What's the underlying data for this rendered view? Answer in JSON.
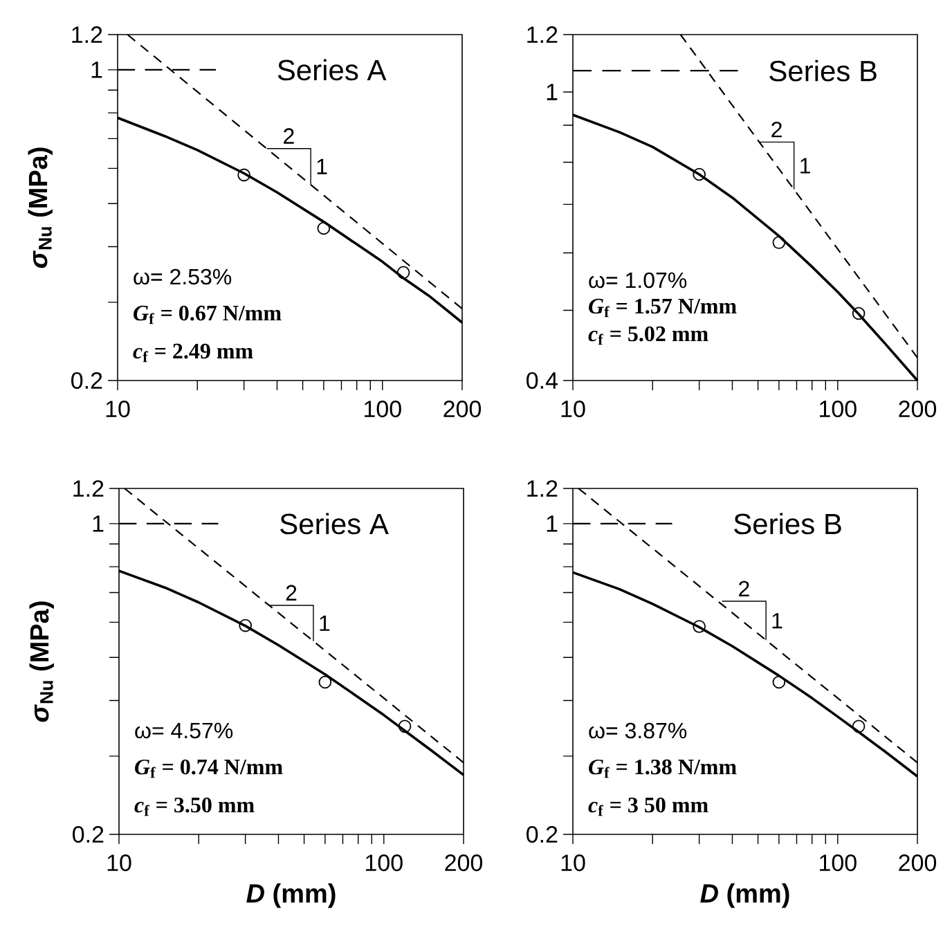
{
  "chart_data": [
    {
      "type": "line",
      "log": "xy",
      "ylabel": "*σ*$_{Nu}$ (MPa)",
      "xlim": [
        10,
        200
      ],
      "ylim": [
        0.2,
        1.2
      ],
      "xticks": [
        10,
        {
          "value": 20,
          "label": null
        },
        {
          "value": 30,
          "label": null
        },
        {
          "value": 40,
          "label": null
        },
        {
          "value": 50,
          "label": null
        },
        {
          "value": 60,
          "label": null
        },
        {
          "value": 70,
          "label": null
        },
        {
          "value": 80,
          "label": null
        },
        {
          "value": 90,
          "label": null
        },
        100,
        200
      ],
      "yticks": [
        0.2,
        {
          "value": 0.3,
          "label": null
        },
        {
          "value": 0.4,
          "label": null
        },
        {
          "value": 0.5,
          "label": null
        },
        {
          "value": 0.6,
          "label": null
        },
        {
          "value": 0.7,
          "label": null
        },
        {
          "value": 0.8,
          "label": null
        },
        {
          "value": 0.9,
          "label": null
        },
        1,
        1.2
      ],
      "series": [
        {
          "color": "#000000",
          "line_style": "solid",
          "marker": "none",
          "x": [
            10,
            15,
            20,
            30,
            40,
            60,
            80,
            100,
            120,
            150,
            200
          ],
          "values": [
            0.78,
            0.71,
            0.66,
            0.585,
            0.53,
            0.455,
            0.405,
            0.37,
            0.34,
            0.31,
            0.27
          ]
        },
        {
          "type": "scatter",
          "color": "#000000",
          "marker": "circle",
          "x": [
            30,
            60,
            120
          ],
          "values": [
            0.58,
            0.44,
            0.35
          ]
        },
        {
          "color": "#000000",
          "line_style": "dashed",
          "marker": "none",
          "x": [
            10.9,
            200
          ],
          "values": [
            1.2,
            0.29
          ]
        },
        {
          "name": "Series A",
          "color": "#000000",
          "line_style": "dashed",
          "marker": "none",
          "x": [
            10,
            23.5
          ],
          "values": [
            1,
            1
          ]
        }
      ],
      "annotations": [
        {
          "text": "2",
          "x": 36.6,
          "y": 0.665
        },
        {
          "text": "1",
          "x": 53.6,
          "y": 0.552
        },
        "ω= 2.53%",
        "*G*$_{f}$ = 0.67 N/mm",
        "*c*$_{f}$ = 2.49 mm"
      ]
    },
    {
      "type": "line",
      "log": "xy",
      "xlim": [
        10,
        200
      ],
      "ylim": [
        0.4,
        1.2
      ],
      "xticks": [
        10,
        {
          "value": 20,
          "label": null
        },
        {
          "value": 30,
          "label": null
        },
        {
          "value": 40,
          "label": null
        },
        {
          "value": 50,
          "label": null
        },
        {
          "value": 60,
          "label": null
        },
        {
          "value": 70,
          "label": null
        },
        {
          "value": 80,
          "label": null
        },
        {
          "value": 90,
          "label": null
        },
        100,
        200
      ],
      "yticks": [
        0.4,
        {
          "value": 0.5,
          "label": null
        },
        {
          "value": 0.6,
          "label": null
        },
        {
          "value": 0.7,
          "label": null
        },
        {
          "value": 0.8,
          "label": null
        },
        {
          "value": 0.9,
          "label": null
        },
        1,
        1.2
      ],
      "series": [
        {
          "color": "#000000",
          "line_style": "solid",
          "marker": "none",
          "x": [
            10,
            15,
            20,
            30,
            40,
            60,
            80,
            100,
            120,
            150,
            200
          ],
          "values": [
            0.93,
            0.88,
            0.84,
            0.77,
            0.715,
            0.633,
            0.574,
            0.53,
            0.494,
            0.451,
            0.4
          ]
        },
        {
          "type": "scatter",
          "color": "#000000",
          "marker": "circle",
          "x": [
            30,
            60,
            120
          ],
          "values": [
            0.77,
            0.62,
            0.495
          ]
        },
        {
          "color": "#000000",
          "line_style": "dashed",
          "marker": "none",
          "x": [
            25.5,
            200
          ],
          "values": [
            1.2,
            0.43
          ]
        },
        {
          "name": "Series B",
          "color": "#000000",
          "line_style": "dashed",
          "marker": "none",
          "x": [
            10,
            42
          ],
          "values": [
            1.07,
            1.07
          ]
        }
      ],
      "annotations": [
        {
          "text": "2",
          "x": 50.6,
          "y": 0.853
        },
        {
          "text": "1",
          "x": 68.4,
          "y": 0.734
        },
        "ω= 1.07%",
        "*G*$_{f}$ = 1.57 N/mm",
        "*c*$_{f}$ = 5.02 mm"
      ]
    },
    {
      "type": "line",
      "log": "xy",
      "xlabel": "*D* (mm)",
      "ylabel": "*σ*$_{Nu}$ (MPa)",
      "xlim": [
        10,
        200
      ],
      "ylim": [
        0.2,
        1.2
      ],
      "xticks": [
        10,
        {
          "value": 20,
          "label": null
        },
        {
          "value": 30,
          "label": null
        },
        {
          "value": 40,
          "label": null
        },
        {
          "value": 50,
          "label": null
        },
        {
          "value": 60,
          "label": null
        },
        {
          "value": 70,
          "label": null
        },
        {
          "value": 80,
          "label": null
        },
        {
          "value": 90,
          "label": null
        },
        100,
        200
      ],
      "yticks": [
        0.2,
        {
          "value": 0.3,
          "label": null
        },
        {
          "value": 0.4,
          "label": null
        },
        {
          "value": 0.5,
          "label": null
        },
        {
          "value": 0.6,
          "label": null
        },
        {
          "value": 0.7,
          "label": null
        },
        {
          "value": 0.8,
          "label": null
        },
        {
          "value": 0.9,
          "label": null
        },
        1,
        1.2
      ],
      "series": [
        {
          "color": "#000000",
          "line_style": "solid",
          "marker": "none",
          "x": [
            10,
            15,
            20,
            30,
            40,
            60,
            80,
            100,
            120,
            150,
            200
          ],
          "values": [
            0.783,
            0.717,
            0.665,
            0.589,
            0.533,
            0.458,
            0.407,
            0.371,
            0.342,
            0.31,
            0.272
          ]
        },
        {
          "type": "scatter",
          "color": "#000000",
          "marker": "circle",
          "x": [
            30,
            60,
            120
          ],
          "values": [
            0.59,
            0.44,
            0.35
          ]
        },
        {
          "color": "#000000",
          "line_style": "dashed",
          "marker": "none",
          "x": [
            10.5,
            200
          ],
          "values": [
            1.2,
            0.29
          ]
        },
        {
          "name": "Series A",
          "color": "#000000",
          "line_style": "dashed",
          "marker": "none",
          "x": [
            10,
            23.7
          ],
          "values": [
            1,
            1
          ]
        }
      ],
      "annotations": [
        {
          "text": "2",
          "x": 36.9,
          "y": 0.655
        },
        {
          "text": "1",
          "x": 54.2,
          "y": 0.544
        },
        "ω= 4.57%",
        "*G*$_{f}$ = 0.74 N/mm",
        "*c*$_{f}$ = 3.50 mm"
      ]
    },
    {
      "type": "line",
      "log": "xy",
      "xlabel": "*D* (mm)",
      "xlim": [
        10,
        200
      ],
      "ylim": [
        0.2,
        1.2
      ],
      "xticks": [
        10,
        {
          "value": 20,
          "label": null
        },
        {
          "value": 30,
          "label": null
        },
        {
          "value": 40,
          "label": null
        },
        {
          "value": 50,
          "label": null
        },
        {
          "value": 60,
          "label": null
        },
        {
          "value": 70,
          "label": null
        },
        {
          "value": 80,
          "label": null
        },
        {
          "value": 90,
          "label": null
        },
        100,
        200
      ],
      "yticks": [
        0.2,
        {
          "value": 0.3,
          "label": null
        },
        {
          "value": 0.4,
          "label": null
        },
        {
          "value": 0.5,
          "label": null
        },
        {
          "value": 0.6,
          "label": null
        },
        {
          "value": 0.7,
          "label": null
        },
        {
          "value": 0.8,
          "label": null
        },
        {
          "value": 0.9,
          "label": null
        },
        1,
        1.2
      ],
      "series": [
        {
          "color": "#000000",
          "line_style": "solid",
          "marker": "none",
          "x": [
            10,
            15,
            20,
            30,
            40,
            60,
            80,
            100,
            120,
            150,
            200
          ],
          "values": [
            0.777,
            0.712,
            0.66,
            0.585,
            0.53,
            0.455,
            0.405,
            0.368,
            0.34,
            0.308,
            0.27
          ]
        },
        {
          "type": "scatter",
          "color": "#000000",
          "marker": "circle",
          "x": [
            30,
            60,
            120
          ],
          "values": [
            0.587,
            0.44,
            0.35
          ]
        },
        {
          "color": "#000000",
          "line_style": "dashed",
          "marker": "none",
          "x": [
            10.5,
            200
          ],
          "values": [
            1.2,
            0.29
          ]
        },
        {
          "name": "Series B",
          "color": "#000000",
          "line_style": "dashed",
          "marker": "none",
          "x": [
            10,
            23.7
          ],
          "values": [
            1,
            1
          ]
        }
      ],
      "annotations": [
        {
          "text": "2",
          "x": 36.6,
          "y": 0.669
        },
        {
          "text": "1",
          "x": 53.6,
          "y": 0.547
        },
        "ω= 3.87%",
        "*G*$_{f}$ = 1.38 N/mm",
        "*c*$_{f}$ = 3 50 mm"
      ]
    }
  ]
}
